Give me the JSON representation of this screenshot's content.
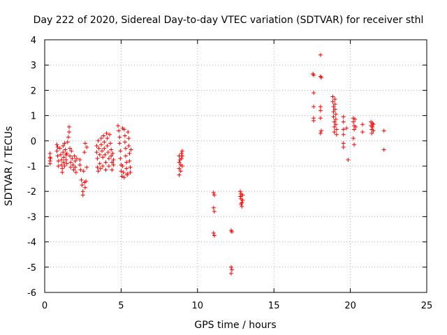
{
  "chart_data": {
    "type": "scatter",
    "title": "Day 222 of 2020, Sidereal Day-to-day VTEC variation (SDTVAR) for receiver sthl",
    "xlabel": "GPS time / hours",
    "ylabel": "SDTVAR / TECUs",
    "xlim": [
      0,
      25
    ],
    "ylim": [
      -6,
      4
    ],
    "xticks": [
      0,
      5,
      10,
      15,
      20,
      25
    ],
    "yticks": [
      -6,
      -5,
      -4,
      -3,
      -2,
      -1,
      0,
      1,
      2,
      3,
      4
    ],
    "xtick_labels": [
      "0",
      "5",
      "10",
      "15",
      "20",
      "25"
    ],
    "ytick_labels": [
      "-6",
      "-5",
      "-4",
      "-3",
      "-2",
      "-1",
      "0",
      "1",
      "2",
      "3",
      "4"
    ],
    "grid": true,
    "marker": "+",
    "marker_color": "#ff0000",
    "series": [
      {
        "name": "sthl",
        "points": [
          [
            0.35,
            -0.5
          ],
          [
            0.35,
            -0.65
          ],
          [
            0.35,
            -0.8
          ],
          [
            0.35,
            -0.9
          ],
          [
            0.38,
            -0.7
          ],
          [
            0.8,
            -0.15
          ],
          [
            0.8,
            -0.4
          ],
          [
            0.85,
            -0.6
          ],
          [
            0.9,
            -0.8
          ],
          [
            0.9,
            -1.0
          ],
          [
            0.85,
            -0.25
          ],
          [
            1.0,
            -0.3
          ],
          [
            1.05,
            -0.55
          ],
          [
            1.1,
            -0.75
          ],
          [
            1.1,
            -0.95
          ],
          [
            1.15,
            -1.1
          ],
          [
            1.15,
            -1.25
          ],
          [
            1.2,
            -0.2
          ],
          [
            1.2,
            -0.45
          ],
          [
            1.25,
            -0.65
          ],
          [
            1.25,
            -0.85
          ],
          [
            1.3,
            -1.0
          ],
          [
            1.3,
            -0.1
          ],
          [
            1.35,
            -0.35
          ],
          [
            1.4,
            -0.55
          ],
          [
            1.4,
            -0.75
          ],
          [
            1.45,
            -0.5
          ],
          [
            1.45,
            -0.9
          ],
          [
            1.5,
            -0.05
          ],
          [
            1.55,
            0.15
          ],
          [
            1.6,
            0.35
          ],
          [
            1.6,
            0.55
          ],
          [
            1.65,
            -0.3
          ],
          [
            1.65,
            -0.6
          ],
          [
            1.7,
            -0.85
          ],
          [
            1.7,
            -1.05
          ],
          [
            1.75,
            -0.4
          ],
          [
            1.8,
            -0.7
          ],
          [
            1.85,
            -0.95
          ],
          [
            1.9,
            -1.15
          ],
          [
            1.95,
            -0.6
          ],
          [
            2.0,
            -0.8
          ],
          [
            2.0,
            -1.05
          ],
          [
            2.05,
            -1.25
          ],
          [
            2.1,
            -0.7
          ],
          [
            2.3,
            -0.75
          ],
          [
            2.3,
            -0.95
          ],
          [
            2.35,
            -1.15
          ],
          [
            2.4,
            -1.55
          ],
          [
            2.45,
            -1.75
          ],
          [
            2.5,
            -2.0
          ],
          [
            2.5,
            -2.15
          ],
          [
            2.55,
            -1.2
          ],
          [
            2.6,
            -1.65
          ],
          [
            2.65,
            -1.85
          ],
          [
            2.7,
            -1.6
          ],
          [
            2.75,
            -1.05
          ],
          [
            2.75,
            -0.25
          ],
          [
            2.65,
            -0.1
          ],
          [
            2.6,
            -0.45
          ],
          [
            3.4,
            -0.2
          ],
          [
            3.4,
            -0.45
          ],
          [
            3.45,
            -0.7
          ],
          [
            3.45,
            -1.05
          ],
          [
            3.5,
            -1.2
          ],
          [
            3.5,
            0.0
          ],
          [
            3.55,
            -0.3
          ],
          [
            3.6,
            -0.55
          ],
          [
            3.6,
            -0.9
          ],
          [
            3.65,
            -1.1
          ],
          [
            3.7,
            0.1
          ],
          [
            3.7,
            -0.15
          ],
          [
            3.75,
            -0.4
          ],
          [
            3.8,
            -0.65
          ],
          [
            3.8,
            -1.0
          ],
          [
            3.85,
            0.2
          ],
          [
            3.9,
            -0.05
          ],
          [
            3.9,
            -0.3
          ],
          [
            3.95,
            -0.55
          ],
          [
            4.0,
            -0.85
          ],
          [
            4.0,
            -1.15
          ],
          [
            4.05,
            0.3
          ],
          [
            4.1,
            0.1
          ],
          [
            4.1,
            -0.2
          ],
          [
            4.15,
            -0.45
          ],
          [
            4.2,
            -0.7
          ],
          [
            4.2,
            -1.0
          ],
          [
            4.25,
            0.25
          ],
          [
            4.3,
            -0.1
          ],
          [
            4.35,
            -0.35
          ],
          [
            4.35,
            -0.6
          ],
          [
            4.4,
            -0.85
          ],
          [
            4.4,
            -1.15
          ],
          [
            4.45,
            -0.5
          ],
          [
            4.5,
            -0.75
          ],
          [
            4.5,
            -0.95
          ],
          [
            4.8,
            0.6
          ],
          [
            4.85,
            0.4
          ],
          [
            4.9,
            0.15
          ],
          [
            4.9,
            -0.1
          ],
          [
            4.95,
            -0.4
          ],
          [
            4.95,
            -0.7
          ],
          [
            5.0,
            -0.95
          ],
          [
            5.0,
            -1.2
          ],
          [
            5.05,
            -1.4
          ],
          [
            5.1,
            0.5
          ],
          [
            5.1,
            -1.0
          ],
          [
            5.15,
            -1.25
          ],
          [
            5.2,
            0.45
          ],
          [
            5.25,
            0.2
          ],
          [
            5.25,
            -0.05
          ],
          [
            5.3,
            -0.3
          ],
          [
            5.3,
            -0.6
          ],
          [
            5.35,
            -0.85
          ],
          [
            5.35,
            -1.1
          ],
          [
            5.4,
            -1.3
          ],
          [
            5.45,
            0.35
          ],
          [
            5.5,
            0.1
          ],
          [
            5.5,
            -0.2
          ],
          [
            5.55,
            -0.5
          ],
          [
            5.55,
            -0.8
          ],
          [
            5.6,
            -1.05
          ],
          [
            5.6,
            -1.25
          ],
          [
            5.2,
            -1.45
          ],
          [
            5.4,
            -1.35
          ],
          [
            5.65,
            -0.35
          ],
          [
            8.8,
            -0.6
          ],
          [
            8.8,
            -0.85
          ],
          [
            8.8,
            -1.1
          ],
          [
            8.8,
            -1.35
          ],
          [
            8.85,
            -0.75
          ],
          [
            8.9,
            -0.95
          ],
          [
            8.9,
            -1.2
          ],
          [
            8.95,
            -0.5
          ],
          [
            8.95,
            -0.7
          ],
          [
            9.0,
            -0.4
          ],
          [
            9.0,
            -0.6
          ],
          [
            9.0,
            -1.0
          ],
          [
            11.05,
            -2.05
          ],
          [
            11.1,
            -2.15
          ],
          [
            11.05,
            -2.65
          ],
          [
            11.1,
            -2.8
          ],
          [
            11.05,
            -3.65
          ],
          [
            11.1,
            -3.75
          ],
          [
            12.2,
            -3.55
          ],
          [
            12.25,
            -3.6
          ],
          [
            12.2,
            -5.0
          ],
          [
            12.25,
            -5.1
          ],
          [
            12.2,
            -5.25
          ],
          [
            12.8,
            -2.0
          ],
          [
            12.85,
            -2.1
          ],
          [
            12.8,
            -2.2
          ],
          [
            12.85,
            -2.3
          ],
          [
            12.9,
            -2.45
          ],
          [
            12.9,
            -2.6
          ],
          [
            12.95,
            -2.15
          ],
          [
            12.95,
            -2.35
          ],
          [
            12.85,
            -2.5
          ],
          [
            17.55,
            2.65
          ],
          [
            17.6,
            2.6
          ],
          [
            17.6,
            1.9
          ],
          [
            17.6,
            1.35
          ],
          [
            17.6,
            0.9
          ],
          [
            17.6,
            0.8
          ],
          [
            18.05,
            3.4
          ],
          [
            18.05,
            2.55
          ],
          [
            18.1,
            2.5
          ],
          [
            18.05,
            1.35
          ],
          [
            18.05,
            1.2
          ],
          [
            18.05,
            0.9
          ],
          [
            18.1,
            0.4
          ],
          [
            18.05,
            0.3
          ],
          [
            18.85,
            1.75
          ],
          [
            18.85,
            1.55
          ],
          [
            18.9,
            1.35
          ],
          [
            18.9,
            1.15
          ],
          [
            18.9,
            0.95
          ],
          [
            18.95,
            0.75
          ],
          [
            18.95,
            0.55
          ],
          [
            18.95,
            0.35
          ],
          [
            19.0,
            1.65
          ],
          [
            19.0,
            1.45
          ],
          [
            19.0,
            1.25
          ],
          [
            19.05,
            1.05
          ],
          [
            19.05,
            0.85
          ],
          [
            19.05,
            0.65
          ],
          [
            19.1,
            0.45
          ],
          [
            19.1,
            0.25
          ],
          [
            19.55,
            0.95
          ],
          [
            19.55,
            0.75
          ],
          [
            19.55,
            0.45
          ],
          [
            19.55,
            0.25
          ],
          [
            19.55,
            -0.1
          ],
          [
            19.55,
            -0.25
          ],
          [
            19.85,
            -0.75
          ],
          [
            19.75,
            0.5
          ],
          [
            20.2,
            0.9
          ],
          [
            20.2,
            0.75
          ],
          [
            20.25,
            0.6
          ],
          [
            20.25,
            0.45
          ],
          [
            20.2,
            0.1
          ],
          [
            20.25,
            -0.15
          ],
          [
            20.3,
            0.85
          ],
          [
            20.35,
            0.55
          ],
          [
            20.8,
            0.65
          ],
          [
            20.8,
            0.35
          ],
          [
            21.35,
            0.75
          ],
          [
            21.35,
            0.6
          ],
          [
            21.4,
            0.45
          ],
          [
            21.4,
            0.3
          ],
          [
            21.45,
            0.7
          ],
          [
            21.45,
            0.55
          ],
          [
            21.5,
            0.65
          ],
          [
            21.5,
            0.4
          ],
          [
            22.2,
            0.4
          ],
          [
            22.2,
            -0.35
          ]
        ]
      }
    ]
  }
}
